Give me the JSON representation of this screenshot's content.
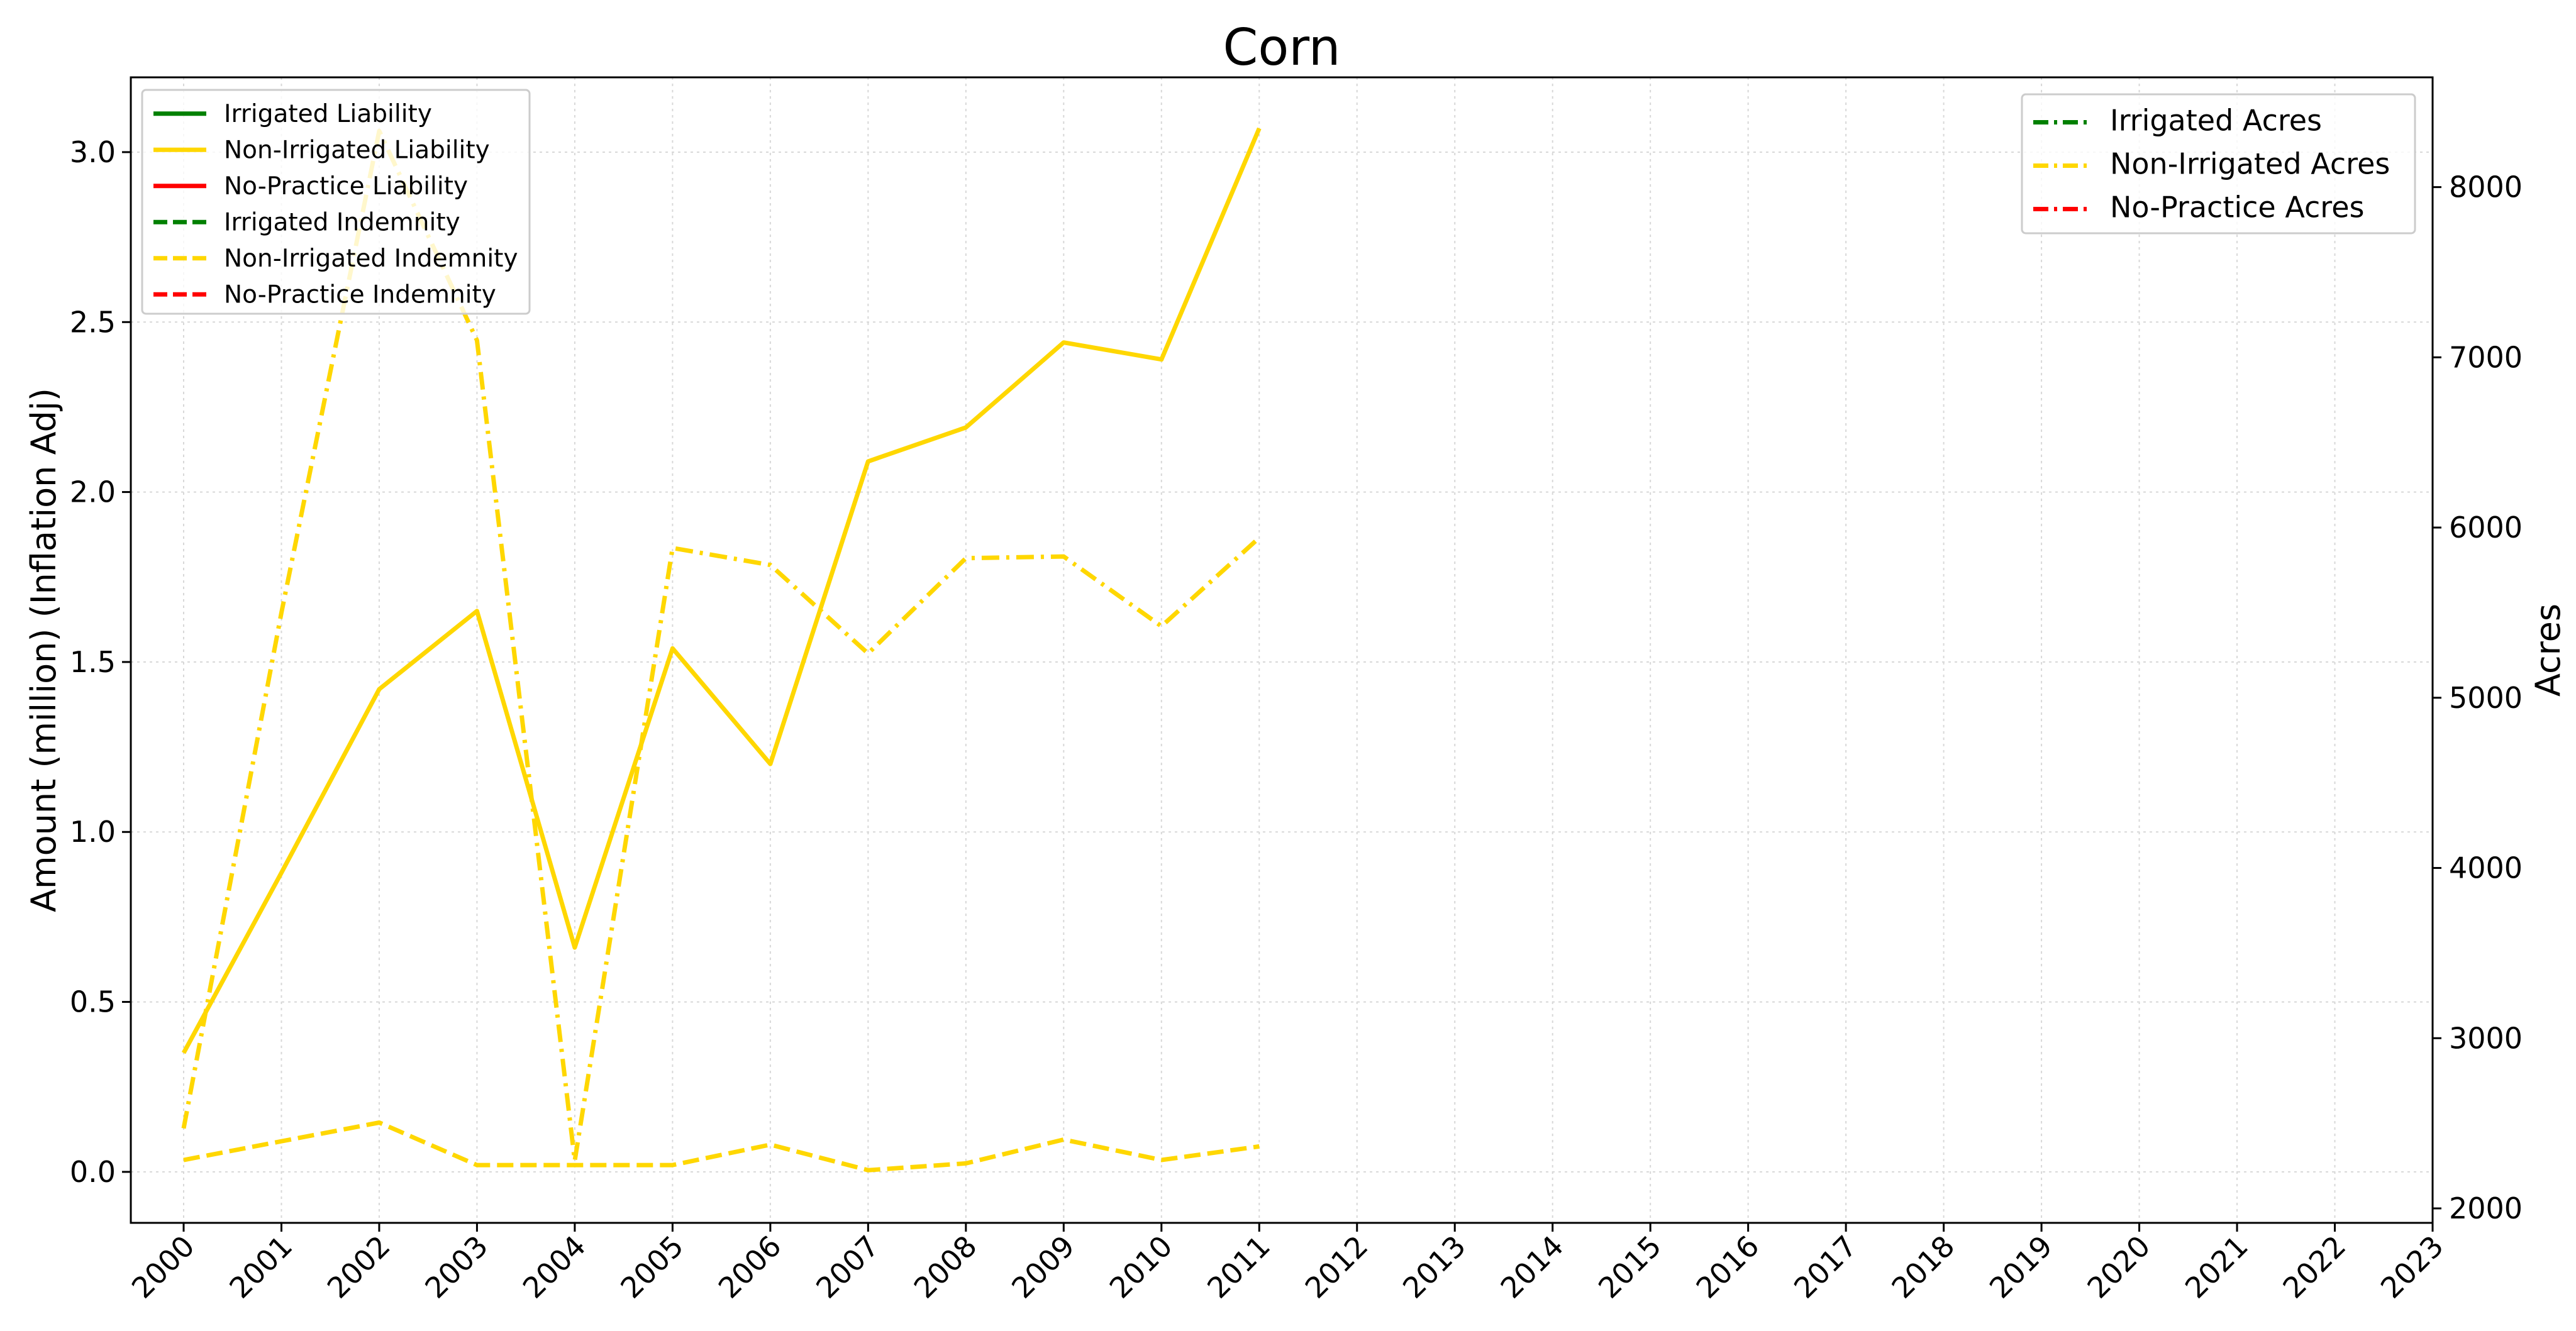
{
  "chart_data": {
    "type": "line",
    "title": "Corn",
    "ylabel_left": "Amount (million) (Inflation Adj)",
    "ylabel_right": "Acres",
    "xlabel": "",
    "x": [
      "2000",
      "2001",
      "2002",
      "2003",
      "2004",
      "2005",
      "2006",
      "2007",
      "2008",
      "2009",
      "2010",
      "2011",
      "2012",
      "2013",
      "2014",
      "2015",
      "2016",
      "2017",
      "2018",
      "2019",
      "2020",
      "2021",
      "2022",
      "2023"
    ],
    "ylim_left": [
      -0.15,
      3.22
    ],
    "ylim_right": [
      1915,
      8645
    ],
    "yticks_left": [
      "0.0",
      "0.5",
      "1.0",
      "1.5",
      "2.0",
      "2.5",
      "3.0"
    ],
    "yticks_right": [
      "2000",
      "3000",
      "4000",
      "5000",
      "6000",
      "7000",
      "8000"
    ],
    "grid": true,
    "colors": {
      "irrigated": "#008000",
      "non_irrigated": "#FFD700",
      "no_practice": "#FF0000"
    },
    "series_left": [
      {
        "name": "Irrigated Liability",
        "style": "solid",
        "color": "#008000",
        "values": []
      },
      {
        "name": "Non-Irrigated Liability",
        "style": "solid",
        "color": "#FFD700",
        "values": [
          0.35,
          0.88,
          1.42,
          1.65,
          0.66,
          1.54,
          1.2,
          2.09,
          2.19,
          2.44,
          2.39,
          3.07
        ]
      },
      {
        "name": "No-Practice Liability",
        "style": "solid",
        "color": "#FF0000",
        "values": []
      },
      {
        "name": "Irrigated Indemnity",
        "style": "dashed",
        "color": "#008000",
        "values": []
      },
      {
        "name": "Non-Irrigated Indemnity",
        "style": "dashed",
        "color": "#FFD700",
        "values": [
          0.035,
          0.09,
          0.145,
          0.02,
          0.02,
          0.02,
          0.08,
          0.005,
          0.025,
          0.095,
          0.035,
          0.075
        ]
      },
      {
        "name": "No-Practice Indemnity",
        "style": "dashed",
        "color": "#FF0000",
        "values": []
      }
    ],
    "series_right": [
      {
        "name": "Irrigated Acres",
        "style": "dashdot",
        "color": "#008000",
        "values": []
      },
      {
        "name": "Non-Irrigated Acres",
        "style": "dashdot",
        "color": "#FFD700",
        "values": [
          2470,
          5500,
          8330,
          7100,
          2280,
          5880,
          5780,
          5260,
          5820,
          5830,
          5420,
          5940
        ]
      },
      {
        "name": "No-Practice Acres",
        "style": "dashdot",
        "color": "#FF0000",
        "values": []
      }
    ],
    "legend_left_placement": "upper-left",
    "legend_right_placement": "upper-right"
  }
}
